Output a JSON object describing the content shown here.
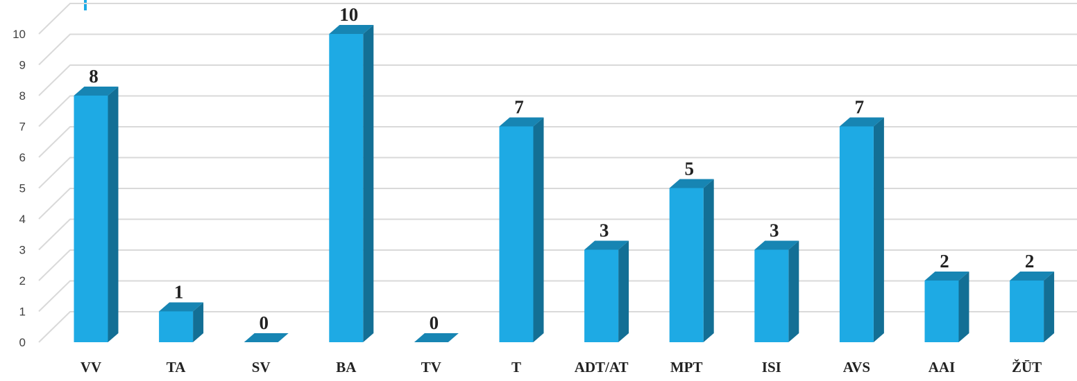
{
  "chart_data": {
    "type": "bar",
    "style": "3d-column",
    "categories": [
      "VV",
      "TA",
      "SV",
      "BA",
      "TV",
      "T",
      "ADT/AT",
      "MPT",
      "ISI",
      "AVS",
      "AAI",
      "ŽŪT"
    ],
    "values": [
      8,
      1,
      0,
      10,
      0,
      7,
      3,
      5,
      3,
      7,
      2,
      2
    ],
    "ylim": [
      0,
      10
    ],
    "yticks": [
      "0",
      "1",
      "2",
      "3",
      "4",
      "5",
      "6",
      "7",
      "8",
      "9",
      "10"
    ],
    "grid": true,
    "legend": "none",
    "data_labels": true,
    "colors": {
      "bar_front": "#1eaae4",
      "bar_side": "#136f95",
      "bar_top": "#1785b3",
      "grid": "#d9d9d9",
      "accent_mark": "#1eaae4"
    }
  }
}
